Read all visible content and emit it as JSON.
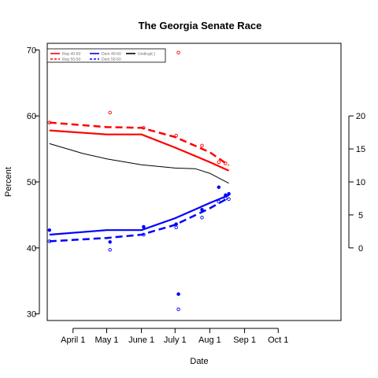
{
  "chart_data": {
    "type": "line",
    "title": "The Georgia Senate Race",
    "xlabel": "Date",
    "ylabel": "Percent",
    "x_ticks": [
      {
        "label": "April 1",
        "x": 91
      },
      {
        "label": "May 1",
        "x": 121
      },
      {
        "label": "June 1",
        "x": 152
      },
      {
        "label": "July 1",
        "x": 182
      },
      {
        "label": "Aug 1",
        "x": 213
      },
      {
        "label": "Sep 1",
        "x": 244
      },
      {
        "label": "Oct 1",
        "x": 274
      }
    ],
    "xlim": [
      68,
      330
    ],
    "ylim": [
      29,
      71
    ],
    "y_ticks": [
      30,
      40,
      50,
      60,
      70
    ],
    "y2_ticks": [
      0,
      5,
      10,
      15,
      20
    ],
    "y2_mapping": {
      "offset": 40,
      "scale": 1
    },
    "legend": {
      "placement": "top-left",
      "entries": [
        {
          "label": "Rep 40-60",
          "color": "#ff0000",
          "style": "solid"
        },
        {
          "label": "Rep 50-50",
          "color": "#ff0000",
          "style": "dashed"
        },
        {
          "label": "Dem 40-60",
          "color": "#0000ff",
          "style": "solid"
        },
        {
          "label": "Dem 50-50",
          "color": "#0000ff",
          "style": "dashed"
        },
        {
          "label": "Undingt(-)",
          "color": "#000000",
          "style": "solid"
        }
      ]
    },
    "series": [
      {
        "name": "Rep 40-60",
        "color": "#ff0000",
        "style": "solid",
        "width": 2.2,
        "points": [
          [
            70,
            57.8
          ],
          [
            121,
            57.2
          ],
          [
            152,
            57.2
          ],
          [
            182,
            55.2
          ],
          [
            213,
            53.0
          ],
          [
            230,
            51.7
          ]
        ]
      },
      {
        "name": "Rep 50-50",
        "color": "#ff0000",
        "style": "dashed",
        "width": 2.5,
        "points": [
          [
            70,
            59.0
          ],
          [
            121,
            58.3
          ],
          [
            152,
            58.2
          ],
          [
            182,
            56.8
          ],
          [
            213,
            54.5
          ],
          [
            230,
            52.5
          ]
        ]
      },
      {
        "name": "Dem 40-60",
        "color": "#0000ff",
        "style": "solid",
        "width": 2.2,
        "points": [
          [
            70,
            42.0
          ],
          [
            121,
            42.7
          ],
          [
            152,
            42.7
          ],
          [
            182,
            44.5
          ],
          [
            213,
            46.8
          ],
          [
            230,
            48.0
          ]
        ]
      },
      {
        "name": "Dem 50-50",
        "color": "#0000ff",
        "style": "dashed",
        "width": 2.5,
        "points": [
          [
            70,
            41.0
          ],
          [
            121,
            41.5
          ],
          [
            152,
            42.0
          ],
          [
            182,
            43.5
          ],
          [
            213,
            46.0
          ],
          [
            230,
            47.6
          ]
        ]
      },
      {
        "name": "Undingt(-)",
        "color": "#000000",
        "style": "solid",
        "width": 1,
        "points": [
          [
            70,
            55.8
          ],
          [
            100,
            54.3
          ],
          [
            121,
            53.5
          ],
          [
            152,
            52.6
          ],
          [
            182,
            52.1
          ],
          [
            200,
            52.0
          ],
          [
            213,
            51.3
          ],
          [
            230,
            49.8
          ]
        ]
      }
    ],
    "scatter": [
      {
        "color": "#ff0000",
        "shape": "open",
        "points": [
          [
            70,
            59.0
          ],
          [
            124,
            60.5
          ],
          [
            154,
            58.2
          ],
          [
            183,
            57.0
          ],
          [
            185,
            69.6
          ],
          [
            206,
            55.5
          ],
          [
            221,
            53.0
          ],
          [
            227,
            52.8
          ]
        ]
      },
      {
        "color": "#0000ff",
        "shape": "filled",
        "points": [
          [
            70,
            42.7
          ],
          [
            124,
            40.9
          ],
          [
            154,
            43.2
          ],
          [
            183,
            43.6
          ],
          [
            185,
            33.0
          ],
          [
            206,
            45.8
          ],
          [
            221,
            49.2
          ],
          [
            227,
            48.0
          ],
          [
            230,
            48.2
          ]
        ]
      },
      {
        "color": "#0000ff",
        "shape": "open",
        "points": [
          [
            70,
            41.0
          ],
          [
            124,
            39.7
          ],
          [
            154,
            42.0
          ],
          [
            183,
            43.1
          ],
          [
            185,
            30.7
          ],
          [
            206,
            44.6
          ],
          [
            221,
            47.0
          ],
          [
            227,
            47.5
          ],
          [
            230,
            47.4
          ]
        ]
      }
    ]
  }
}
